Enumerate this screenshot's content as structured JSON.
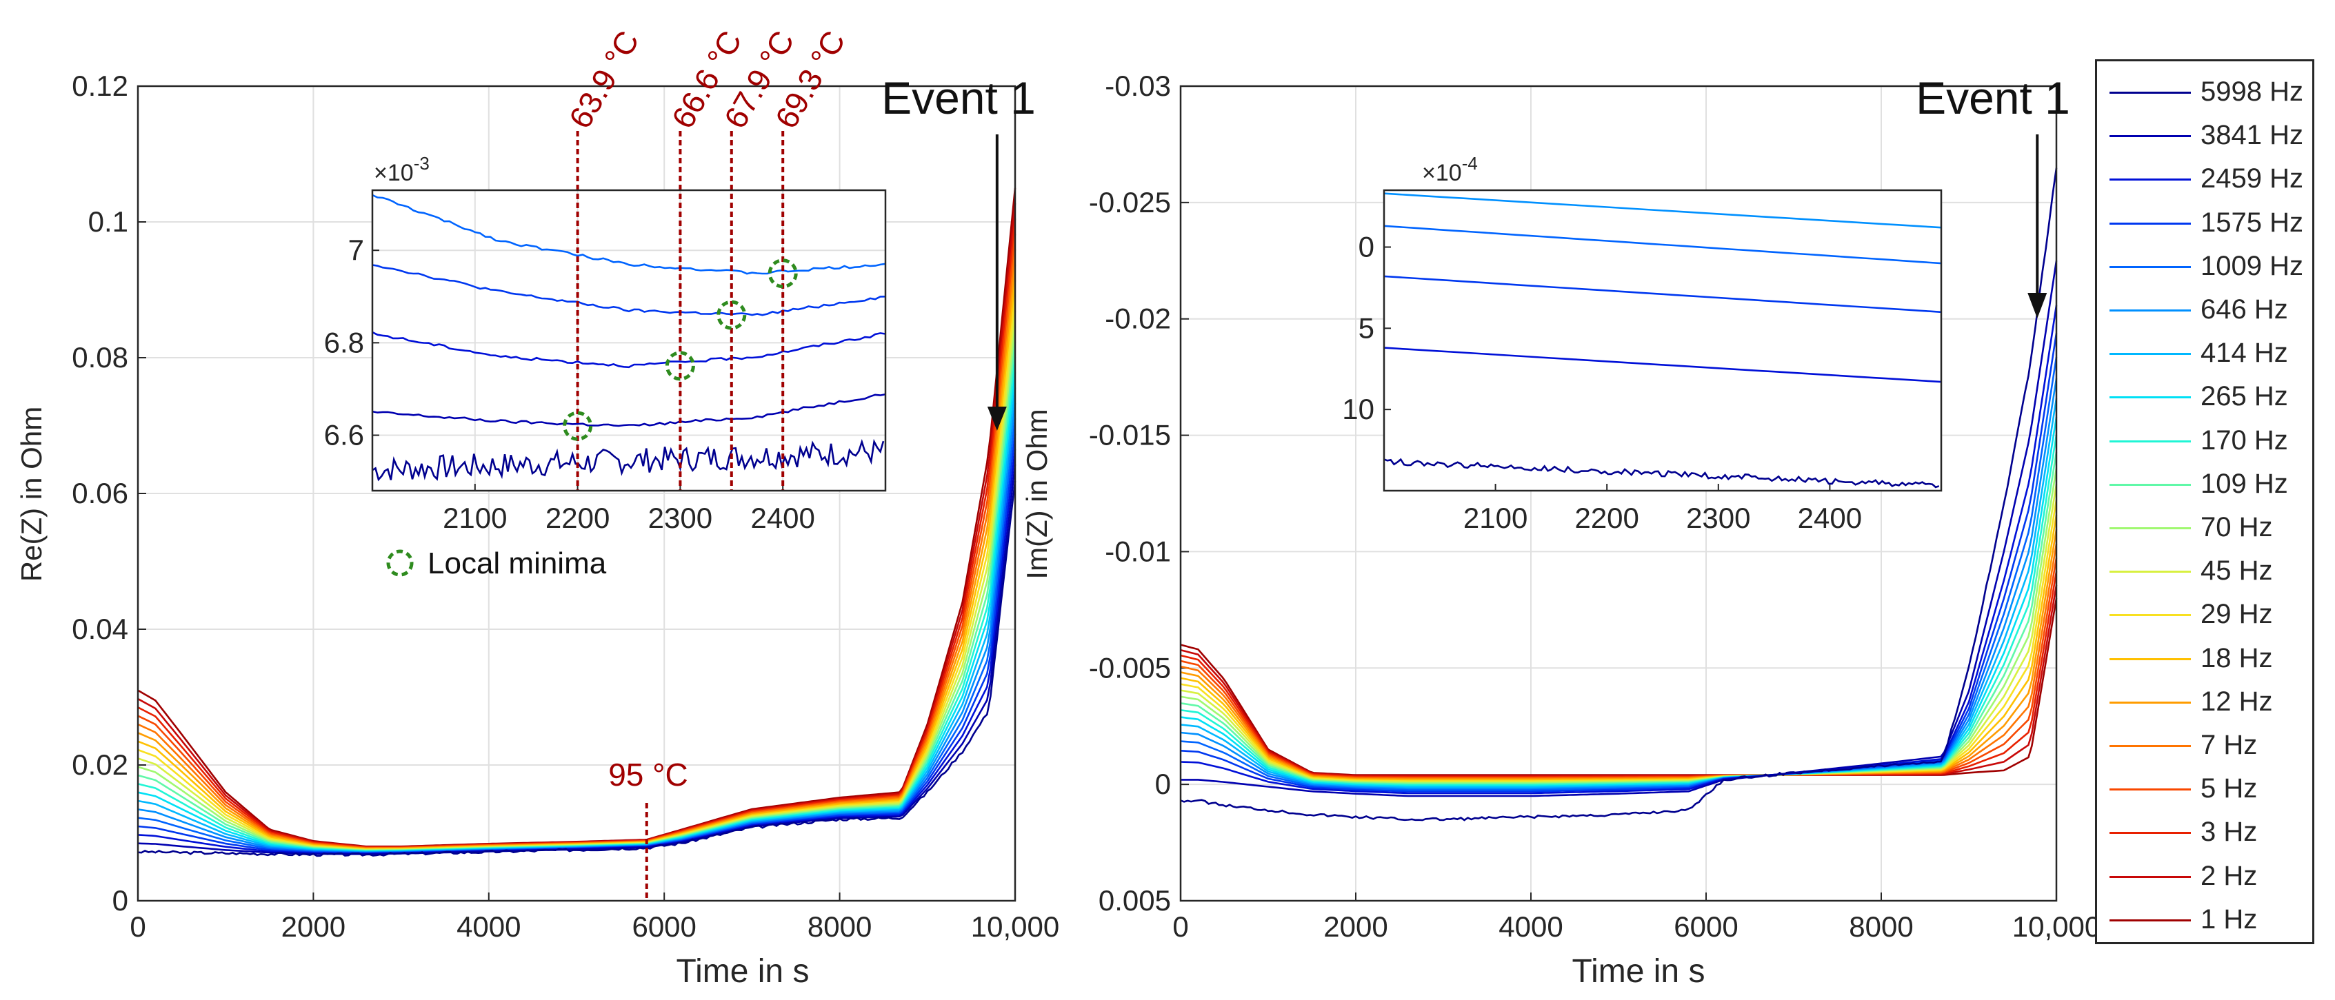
{
  "chart_data": [
    {
      "type": "line",
      "title": "",
      "xlabel": "Time in s",
      "ylabel": "Re(Z) in Ohm",
      "xlim": [
        0,
        10000
      ],
      "ylim": [
        0,
        0.12
      ],
      "xticks": [
        "0",
        "2000",
        "4000",
        "6000",
        "8000",
        "10,000"
      ],
      "yticks": [
        "0",
        "0.02",
        "0.04",
        "0.06",
        "0.08",
        "0.1",
        "0.12"
      ],
      "grid": true,
      "x": [
        0,
        200,
        500,
        1000,
        1500,
        2000,
        2600,
        3000,
        4000,
        5000,
        5800,
        6200,
        7000,
        8000,
        8700,
        9000,
        9400,
        9700,
        10000
      ],
      "series_note": "20 series, one per frequency (see legend); values interpolate between lowest and highest frequency curves",
      "series": [
        {
          "name": "5998 Hz",
          "values": [
            0.0072,
            0.0072,
            0.0071,
            0.007,
            0.0069,
            0.0068,
            0.0068,
            0.0069,
            0.0072,
            0.0075,
            0.0078,
            0.0085,
            0.0108,
            0.012,
            0.0122,
            0.016,
            0.022,
            0.028,
            0.062
          ]
        },
        {
          "name": "1 Hz",
          "values": [
            0.031,
            0.0295,
            0.0245,
            0.016,
            0.0105,
            0.0088,
            0.008,
            0.008,
            0.0084,
            0.0087,
            0.009,
            0.0105,
            0.0135,
            0.0152,
            0.016,
            0.026,
            0.044,
            0.066,
            0.105
          ]
        }
      ],
      "annotations": {
        "event": "Event 1",
        "event_x": 9700,
        "temp_95_label": "95 °C",
        "temp_95_x": 5800
      }
    },
    {
      "type": "line",
      "title": "",
      "xlabel": "Time in s",
      "ylabel": "Im(Z) in Ohm",
      "xlim": [
        0,
        10000
      ],
      "ylim": [
        0.005,
        -0.03
      ],
      "xticks": [
        "0",
        "2000",
        "4000",
        "6000",
        "8000",
        "10,000"
      ],
      "yticks": [
        "-0.03",
        "-0.025",
        "-0.02",
        "-0.015",
        "-0.01",
        "-0.005",
        "0",
        "0.005"
      ],
      "grid": true,
      "x": [
        0,
        200,
        500,
        1000,
        1500,
        2000,
        2600,
        3000,
        4000,
        5000,
        5800,
        6200,
        7000,
        8000,
        8700,
        9000,
        9400,
        9700,
        10000
      ],
      "series": [
        {
          "name": "5998 Hz",
          "values": [
            0.0007,
            0.0007,
            0.0009,
            0.0011,
            0.0013,
            0.0014,
            0.0015,
            0.0015,
            0.0014,
            0.0013,
            0.0011,
            -0.0002,
            -0.0005,
            -0.0008,
            -0.001,
            -0.005,
            -0.012,
            -0.018,
            -0.0265
          ]
        },
        {
          "name": "3841 Hz",
          "values": [
            -0.0002,
            -0.0002,
            -0.0001,
            0.0001,
            0.0003,
            0.0004,
            0.0005,
            0.0005,
            0.0005,
            0.0004,
            0.0003,
            -0.0002,
            -0.0005,
            -0.0009,
            -0.0012,
            -0.004,
            -0.01,
            -0.015,
            -0.0225
          ]
        },
        {
          "name": "1 Hz",
          "values": [
            -0.006,
            -0.0058,
            -0.0045,
            -0.0015,
            -0.0005,
            -0.0004,
            -0.0004,
            -0.0004,
            -0.0004,
            -0.0004,
            -0.0004,
            -0.0004,
            -0.0004,
            -0.0004,
            -0.0004,
            -0.0005,
            -0.0006,
            -0.0012,
            -0.008
          ]
        }
      ],
      "annotations": {
        "event": "Event 1",
        "event_x": 9750
      }
    }
  ],
  "inset_left": {
    "exponent": "×10",
    "exponent_power": "-3",
    "xlim": [
      2000,
      2500
    ],
    "ylim": [
      6.48,
      7.13
    ],
    "xticks": [
      "2100",
      "2200",
      "2300",
      "2400"
    ],
    "yticks": [
      "6.6",
      "6.8",
      "7"
    ],
    "series": [
      {
        "values_at_2000_2500": [
          6.525,
          6.565
        ]
      },
      {
        "values_at_2000_2500": [
          6.65,
          6.63,
          6.62,
          6.64,
          6.69
        ]
      },
      {
        "values_at_2000_2500": [
          6.82,
          6.77,
          6.75,
          6.77,
          6.82
        ]
      },
      {
        "values_at_2000_2500": [
          6.97,
          6.91,
          6.87,
          6.86,
          6.9
        ]
      },
      {
        "values_at_2000_2500": [
          7.12,
          7.02,
          6.97,
          6.95,
          6.97
        ]
      }
    ],
    "minima": [
      {
        "x": 2200,
        "y": 6.62
      },
      {
        "x": 2300,
        "y": 6.75
      },
      {
        "x": 2350,
        "y": 6.86
      },
      {
        "x": 2400,
        "y": 6.95
      }
    ],
    "minima_label": "Local minima",
    "temperatures": [
      {
        "label": "63.9 °C",
        "x": 2200
      },
      {
        "label": "66.6 °C",
        "x": 2300
      },
      {
        "label": "67.9 °C",
        "x": 2350
      },
      {
        "label": "69.3 °C",
        "x": 2400
      }
    ]
  },
  "inset_right": {
    "exponent": "×10",
    "exponent_power": "-4",
    "xlim": [
      2000,
      2500
    ],
    "ylim": [
      15,
      -3.5
    ],
    "xticks": [
      "2100",
      "2200",
      "2300",
      "2400"
    ],
    "yticks": [
      "0",
      "5",
      "10"
    ],
    "series_start_end": [
      [
        -3.3,
        -1.2
      ],
      [
        -1.3,
        1.0
      ],
      [
        1.8,
        4.0
      ],
      [
        6.2,
        8.3
      ],
      [
        13.2,
        14.7
      ]
    ]
  },
  "legend": [
    {
      "label": "5998 Hz",
      "color": "#00008F"
    },
    {
      "label": "3841 Hz",
      "color": "#0000B0"
    },
    {
      "label": "2459 Hz",
      "color": "#0010D8"
    },
    {
      "label": "1575 Hz",
      "color": "#0038F0"
    },
    {
      "label": "1009 Hz",
      "color": "#0064FF"
    },
    {
      "label": "646 Hz",
      "color": "#0090FF"
    },
    {
      "label": "414 Hz",
      "color": "#00B8FF"
    },
    {
      "label": "265 Hz",
      "color": "#00E0F5"
    },
    {
      "label": "170 Hz",
      "color": "#20F5D5"
    },
    {
      "label": "109 Hz",
      "color": "#60F8A8"
    },
    {
      "label": "70 Hz",
      "color": "#A0F870"
    },
    {
      "label": "45 Hz",
      "color": "#D8F040"
    },
    {
      "label": "29 Hz",
      "color": "#F8E020"
    },
    {
      "label": "18 Hz",
      "color": "#FFC000"
    },
    {
      "label": "12 Hz",
      "color": "#FF9C00"
    },
    {
      "label": "7 Hz",
      "color": "#FF7400"
    },
    {
      "label": "5 Hz",
      "color": "#F84800"
    },
    {
      "label": "3 Hz",
      "color": "#E82000"
    },
    {
      "label": "2 Hz",
      "color": "#C80808"
    },
    {
      "label": "1 Hz",
      "color": "#A00000"
    }
  ],
  "colors": {
    "temperature": "#A00000",
    "minima": "#2E8B1E",
    "axis": "#262626",
    "grid": "#E0E0E0"
  }
}
